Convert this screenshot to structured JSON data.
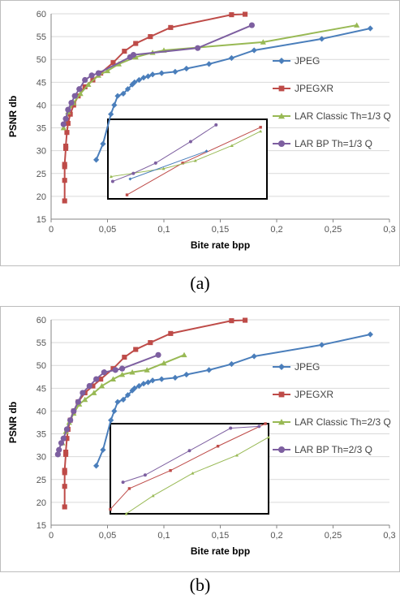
{
  "charts": [
    {
      "caption": "(a)",
      "chart_data": {
        "type": "line",
        "title": "",
        "xlabel": "Bite rate bpp",
        "ylabel": "PSNR db",
        "xlim": [
          0,
          0.3
        ],
        "ylim": [
          15,
          60
        ],
        "xticks": [
          0,
          0.05,
          0.1,
          0.15,
          0.2,
          0.25,
          0.3
        ],
        "xtick_labels": [
          "0",
          "0,05",
          "0,1",
          "0,15",
          "0,2",
          "0,25",
          "0,3"
        ],
        "yticks": [
          15,
          20,
          25,
          30,
          35,
          40,
          45,
          50,
          55,
          60
        ],
        "ytick_labels": [
          "15",
          "20",
          "25",
          "30",
          "35",
          "40",
          "45",
          "50",
          "55",
          "60"
        ],
        "grid": "horizontal",
        "legend": "right",
        "inset": "empty rectangle with zoomed curves",
        "series": [
          {
            "name": "JPEG",
            "color": "#4a7ebb",
            "marker": "diamond",
            "x": [
              0.04,
              0.046,
              0.053,
              0.056,
              0.059,
              0.064,
              0.068,
              0.072,
              0.074,
              0.078,
              0.082,
              0.086,
              0.09,
              0.098,
              0.11,
              0.12,
              0.14,
              0.16,
              0.18,
              0.24,
              0.283
            ],
            "y": [
              28,
              31.5,
              38,
              40,
              42,
              42.5,
              43.5,
              44.5,
              45,
              45.5,
              46,
              46.3,
              46.7,
              47,
              47.3,
              48,
              49,
              50.3,
              52,
              54.5,
              56.8
            ]
          },
          {
            "name": "JPEGXR",
            "color": "#be4b48",
            "marker": "square",
            "x": [
              0.012,
              0.012,
              0.012,
              0.012,
              0.013,
              0.013,
              0.014,
              0.015,
              0.017,
              0.02,
              0.024,
              0.03,
              0.037,
              0.044,
              0.055,
              0.065,
              0.075,
              0.088,
              0.106,
              0.16,
              0.172
            ],
            "y": [
              19,
              23.5,
              26.5,
              27,
              30.5,
              31,
              34,
              36,
              38,
              40,
              42,
              44,
              45.5,
              47,
              49.3,
              51.8,
              53.5,
              55,
              57,
              59.8,
              59.9
            ]
          },
          {
            "name": "LAR Classic Th=1/3 Q",
            "color": "#98b954",
            "marker": "triangle",
            "x": [
              0.011,
              0.015,
              0.02,
              0.026,
              0.033,
              0.042,
              0.05,
              0.06,
              0.075,
              0.09,
              0.1,
              0.188,
              0.271
            ],
            "y": [
              35,
              38.5,
              40.5,
              42.5,
              44.5,
              46.5,
              47.5,
              49,
              50.5,
              51.5,
              52,
              53.8,
              57.5
            ]
          },
          {
            "name": "LAR BP Th=1/3 Q",
            "color": "#7d5fa0",
            "marker": "circle",
            "x": [
              0.011,
              0.013,
              0.015,
              0.018,
              0.021,
              0.025,
              0.03,
              0.036,
              0.042,
              0.07,
              0.073,
              0.13,
              0.178
            ],
            "y": [
              35.8,
              37,
              39,
              40.5,
              42,
              43.5,
              45.5,
              46.5,
              47,
              50.5,
              51,
              52.5,
              57.5
            ]
          }
        ]
      }
    },
    {
      "caption": "(b)",
      "chart_data": {
        "type": "line",
        "title": "",
        "xlabel": "Bite rate bpp",
        "ylabel": "PSNR db",
        "xlim": [
          0,
          0.3
        ],
        "ylim": [
          15,
          60
        ],
        "xticks": [
          0,
          0.05,
          0.1,
          0.15,
          0.2,
          0.25,
          0.3
        ],
        "xtick_labels": [
          "0",
          "0,05",
          "0,1",
          "0,15",
          "0,2",
          "0,25",
          "0,3"
        ],
        "yticks": [
          15,
          20,
          25,
          30,
          35,
          40,
          45,
          50,
          55,
          60
        ],
        "ytick_labels": [
          "15",
          "20",
          "25",
          "30",
          "35",
          "40",
          "45",
          "50",
          "55",
          "60"
        ],
        "grid": "horizontal",
        "legend": "right",
        "inset": "empty rectangle with zoomed curves",
        "series": [
          {
            "name": "JPEG",
            "color": "#4a7ebb",
            "marker": "diamond",
            "x": [
              0.04,
              0.046,
              0.053,
              0.056,
              0.059,
              0.064,
              0.068,
              0.072,
              0.074,
              0.078,
              0.082,
              0.086,
              0.09,
              0.098,
              0.11,
              0.12,
              0.14,
              0.16,
              0.18,
              0.24,
              0.283
            ],
            "y": [
              28,
              31.5,
              38,
              40,
              42,
              42.5,
              43.5,
              44.5,
              45,
              45.5,
              46,
              46.3,
              46.7,
              47,
              47.3,
              48,
              49,
              50.3,
              52,
              54.5,
              56.8
            ]
          },
          {
            "name": "JPEGXR",
            "color": "#be4b48",
            "marker": "square",
            "x": [
              0.012,
              0.012,
              0.012,
              0.012,
              0.013,
              0.013,
              0.014,
              0.015,
              0.017,
              0.02,
              0.024,
              0.03,
              0.037,
              0.044,
              0.055,
              0.065,
              0.075,
              0.088,
              0.106,
              0.16,
              0.172
            ],
            "y": [
              19,
              23.5,
              26.5,
              27,
              30.5,
              31,
              34,
              36,
              38,
              40,
              42,
              44,
              45.5,
              47,
              49.3,
              51.8,
              53.5,
              55,
              57,
              59.8,
              59.9
            ]
          },
          {
            "name": "LAR Classic Th=2/3 Q",
            "color": "#98b954",
            "marker": "triangle",
            "x": [
              0.01,
              0.013,
              0.016,
              0.02,
              0.025,
              0.03,
              0.038,
              0.045,
              0.055,
              0.063,
              0.072,
              0.085,
              0.1,
              0.118
            ],
            "y": [
              33,
              35.5,
              37.5,
              39.5,
              41.5,
              42.5,
              44,
              45.5,
              47,
              48,
              48.5,
              49,
              50.5,
              52.3
            ]
          },
          {
            "name": "LAR BP Th=2/3 Q",
            "color": "#7d5fa0",
            "marker": "circle",
            "x": [
              0.006,
              0.007,
              0.009,
              0.011,
              0.014,
              0.017,
              0.02,
              0.024,
              0.028,
              0.034,
              0.04,
              0.047,
              0.057,
              0.063,
              0.095
            ],
            "y": [
              30.5,
              31.5,
              33,
              34,
              36,
              38,
              40,
              42,
              44,
              45.5,
              47,
              48.5,
              49,
              49.3,
              52.3
            ]
          }
        ]
      }
    }
  ]
}
